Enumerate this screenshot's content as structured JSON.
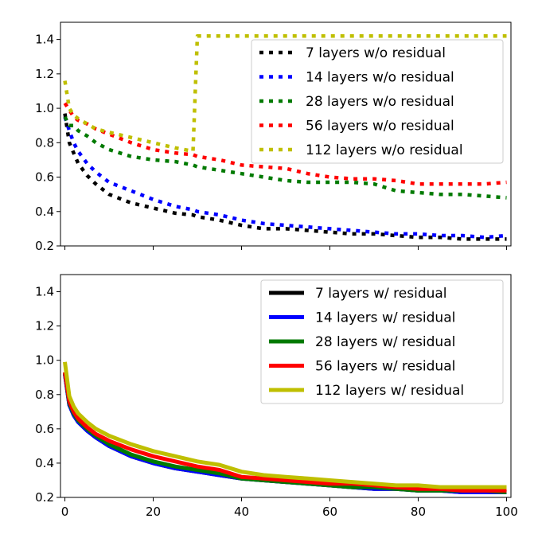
{
  "chart_data": [
    {
      "type": "line",
      "title": "",
      "xlabel": "",
      "ylabel": "",
      "xlim": [
        -1,
        101
      ],
      "ylim": [
        0.2,
        1.5
      ],
      "x_ticks": [
        0,
        20,
        40,
        60,
        80,
        100
      ],
      "x_tick_labels_shown": false,
      "y_ticks": [
        0.2,
        0.4,
        0.6,
        0.8,
        1.0,
        1.2,
        1.4
      ],
      "y_tick_labels": [
        "0.2",
        "0.4",
        "0.6",
        "0.8",
        "1.0",
        "1.2",
        "1.4"
      ],
      "line_style": "dotted",
      "legend_position": "upper-right",
      "x": [
        0,
        1,
        2,
        3,
        5,
        7,
        10,
        15,
        20,
        25,
        29,
        30,
        35,
        40,
        45,
        50,
        55,
        60,
        65,
        70,
        75,
        80,
        85,
        90,
        95,
        100
      ],
      "series": [
        {
          "name": "7 layers w/o residual",
          "color": "#000000",
          "values": [
            0.97,
            0.8,
            0.74,
            0.68,
            0.61,
            0.56,
            0.5,
            0.45,
            0.42,
            0.39,
            0.38,
            0.37,
            0.35,
            0.32,
            0.3,
            0.3,
            0.29,
            0.28,
            0.27,
            0.27,
            0.26,
            0.25,
            0.25,
            0.24,
            0.24,
            0.24
          ]
        },
        {
          "name": "14 layers w/o residual",
          "color": "#0000ff",
          "values": [
            0.95,
            0.87,
            0.8,
            0.75,
            0.68,
            0.63,
            0.57,
            0.52,
            0.47,
            0.43,
            0.41,
            0.4,
            0.38,
            0.35,
            0.33,
            0.32,
            0.31,
            0.3,
            0.29,
            0.28,
            0.27,
            0.27,
            0.26,
            0.26,
            0.25,
            0.26
          ]
        },
        {
          "name": "28 layers w/o residual",
          "color": "#007a00",
          "values": [
            0.95,
            0.9,
            0.9,
            0.87,
            0.84,
            0.8,
            0.76,
            0.72,
            0.7,
            0.69,
            0.67,
            0.66,
            0.64,
            0.62,
            0.6,
            0.58,
            0.57,
            0.57,
            0.57,
            0.56,
            0.52,
            0.51,
            0.5,
            0.5,
            0.49,
            0.48
          ]
        },
        {
          "name": "56 layers w/o residual",
          "color": "#ff0000",
          "values": [
            1.03,
            0.99,
            0.95,
            0.93,
            0.91,
            0.88,
            0.85,
            0.8,
            0.76,
            0.74,
            0.73,
            0.72,
            0.7,
            0.67,
            0.66,
            0.65,
            0.62,
            0.6,
            0.59,
            0.59,
            0.58,
            0.56,
            0.56,
            0.56,
            0.56,
            0.57
          ]
        },
        {
          "name": "112 layers w/o residual",
          "color": "#bfbf00",
          "values": [
            1.16,
            1.0,
            0.96,
            0.94,
            0.91,
            0.88,
            0.86,
            0.83,
            0.8,
            0.77,
            0.75,
            1.42,
            1.42,
            1.42,
            1.42,
            1.42,
            1.42,
            1.42,
            1.42,
            1.42,
            1.42,
            1.42,
            1.42,
            1.42,
            1.42,
            1.42
          ]
        }
      ]
    },
    {
      "type": "line",
      "title": "",
      "xlabel": "",
      "ylabel": "",
      "xlim": [
        -1,
        101
      ],
      "ylim": [
        0.2,
        1.5
      ],
      "x_ticks": [
        0,
        20,
        40,
        60,
        80,
        100
      ],
      "x_tick_labels": [
        "0",
        "20",
        "40",
        "60",
        "80",
        "100"
      ],
      "y_ticks": [
        0.2,
        0.4,
        0.6,
        0.8,
        1.0,
        1.2,
        1.4
      ],
      "y_tick_labels": [
        "0.2",
        "0.4",
        "0.6",
        "0.8",
        "1.0",
        "1.2",
        "1.4"
      ],
      "line_style": "solid",
      "legend_position": "upper-right",
      "x": [
        0,
        1,
        2,
        3,
        5,
        7,
        10,
        15,
        20,
        25,
        30,
        35,
        40,
        45,
        50,
        55,
        60,
        65,
        70,
        75,
        80,
        85,
        90,
        95,
        100
      ],
      "series": [
        {
          "name": "7 layers w/ residual",
          "color": "#000000",
          "values": [
            0.92,
            0.74,
            0.68,
            0.64,
            0.59,
            0.55,
            0.5,
            0.44,
            0.4,
            0.37,
            0.35,
            0.33,
            0.31,
            0.3,
            0.29,
            0.28,
            0.27,
            0.26,
            0.25,
            0.25,
            0.24,
            0.24,
            0.23,
            0.23,
            0.23
          ]
        },
        {
          "name": "14 layers w/ residual",
          "color": "#0000ff",
          "values": [
            0.92,
            0.74,
            0.68,
            0.64,
            0.59,
            0.55,
            0.5,
            0.44,
            0.4,
            0.37,
            0.35,
            0.33,
            0.31,
            0.3,
            0.29,
            0.28,
            0.27,
            0.26,
            0.25,
            0.25,
            0.24,
            0.24,
            0.23,
            0.23,
            0.23
          ]
        },
        {
          "name": "28 layers w/ residual",
          "color": "#007a00",
          "values": [
            0.93,
            0.75,
            0.69,
            0.65,
            0.6,
            0.56,
            0.51,
            0.45,
            0.41,
            0.38,
            0.36,
            0.34,
            0.31,
            0.3,
            0.29,
            0.28,
            0.27,
            0.26,
            0.26,
            0.25,
            0.24,
            0.24,
            0.24,
            0.24,
            0.23
          ]
        },
        {
          "name": "56 layers w/ residual",
          "color": "#ff0000",
          "values": [
            0.93,
            0.76,
            0.7,
            0.66,
            0.61,
            0.57,
            0.53,
            0.48,
            0.44,
            0.41,
            0.38,
            0.36,
            0.32,
            0.31,
            0.3,
            0.29,
            0.28,
            0.28,
            0.27,
            0.26,
            0.25,
            0.25,
            0.24,
            0.24,
            0.24
          ]
        },
        {
          "name": "112 layers w/ residual",
          "color": "#bfbf00",
          "values": [
            0.99,
            0.79,
            0.73,
            0.69,
            0.64,
            0.6,
            0.56,
            0.51,
            0.47,
            0.44,
            0.41,
            0.39,
            0.35,
            0.33,
            0.32,
            0.31,
            0.3,
            0.29,
            0.28,
            0.27,
            0.27,
            0.26,
            0.26,
            0.26,
            0.26
          ]
        }
      ]
    }
  ]
}
